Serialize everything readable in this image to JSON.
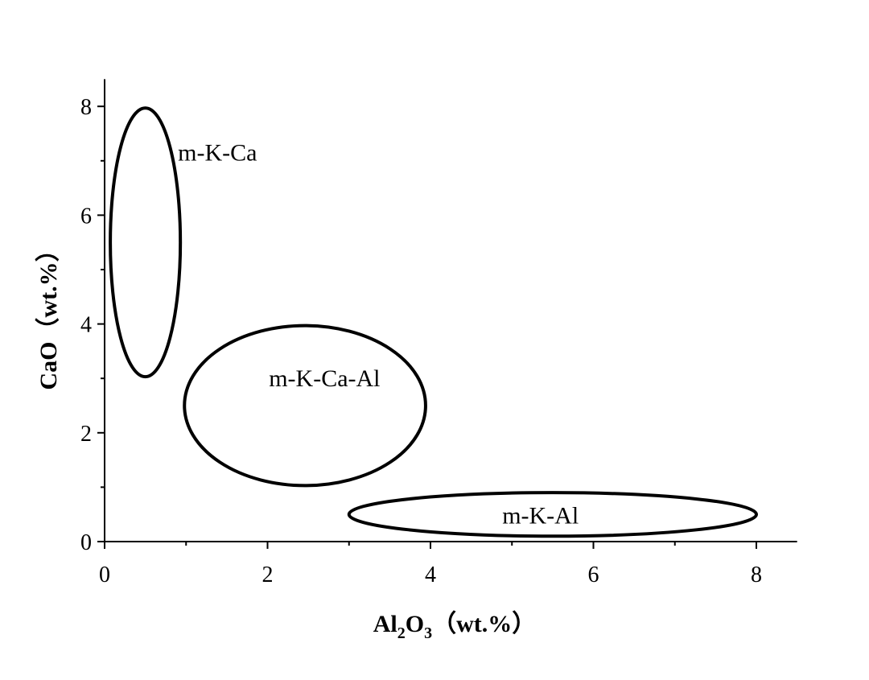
{
  "chart_data": {
    "type": "scatter",
    "title": "",
    "xlabel": {
      "main": "Al",
      "sub1": "2",
      "mid": "O",
      "sub2": "3",
      "unit": "（wt.%）"
    },
    "ylabel": "CaO（wt.%）",
    "xlim": [
      0,
      8.5
    ],
    "ylim": [
      0,
      8.5
    ],
    "x_ticks": [
      0,
      2,
      4,
      6,
      8
    ],
    "y_ticks": [
      0,
      2,
      4,
      6,
      8
    ],
    "x_minor_ticks": [
      1,
      3,
      5,
      7
    ],
    "y_minor_ticks": [
      1,
      3,
      5,
      7
    ],
    "grid": false,
    "regions": [
      {
        "label": "m-K-Ca",
        "cx": 0.5,
        "cy": 5.5,
        "rx": 0.43,
        "ry": 2.47,
        "label_x": 0.9,
        "label_y": 7.15
      },
      {
        "label": "m-K-Ca-Al",
        "cx": 2.46,
        "cy": 2.5,
        "rx": 1.48,
        "ry": 1.47,
        "label_x": 2.7,
        "label_y": 3.0
      },
      {
        "label": "m-K-Al",
        "cx": 5.5,
        "cy": 0.5,
        "rx": 2.5,
        "ry": 0.4,
        "label_x": 5.35,
        "label_y": 0.48
      }
    ],
    "colors": {
      "line": "#000000"
    }
  }
}
